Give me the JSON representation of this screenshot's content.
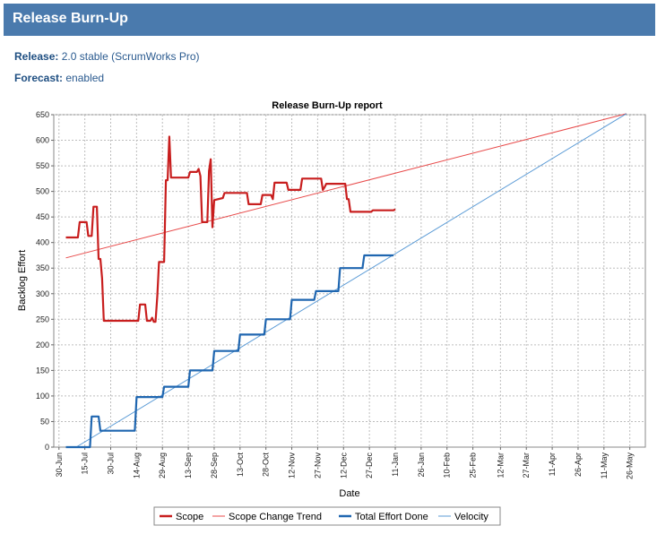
{
  "header": {
    "title": "Release Burn-Up"
  },
  "release": {
    "label": "Release:",
    "value": "2.0 stable (ScrumWorks Pro)"
  },
  "forecast": {
    "label": "Forecast:",
    "value": "enabled"
  },
  "colors": {
    "scope": "#c81e1e",
    "trend": "#e84a4a",
    "done": "#1f66b0",
    "velocity": "#5b9bd6",
    "header": "#4a7aad"
  },
  "chart_data": {
    "type": "line",
    "title": "Release Burn-Up report",
    "xlabel": "Date",
    "ylabel": "Backlog Effort",
    "ylim": [
      0,
      650
    ],
    "yticks": [
      0,
      50,
      100,
      150,
      200,
      250,
      300,
      350,
      400,
      450,
      500,
      550,
      600,
      650
    ],
    "xlim": [
      "2007-06-27",
      "2008-06-04"
    ],
    "xtick_labels": [
      {
        "date": "2007-06-30",
        "label": "30-Jun"
      },
      {
        "date": "2007-07-15",
        "label": "15-Jul"
      },
      {
        "date": "2007-07-30",
        "label": "30-Jul"
      },
      {
        "date": "2007-08-14",
        "label": "14-Aug"
      },
      {
        "date": "2007-08-29",
        "label": "29-Aug"
      },
      {
        "date": "2007-09-13",
        "label": "13-Sep"
      },
      {
        "date": "2007-09-28",
        "label": "28-Sep"
      },
      {
        "date": "2007-10-13",
        "label": "13-Oct"
      },
      {
        "date": "2007-10-28",
        "label": "28-Oct"
      },
      {
        "date": "2007-11-12",
        "label": "12-Nov"
      },
      {
        "date": "2007-11-27",
        "label": "27-Nov"
      },
      {
        "date": "2007-12-12",
        "label": "12-Dec"
      },
      {
        "date": "2007-12-27",
        "label": "27-Dec"
      },
      {
        "date": "2008-01-11",
        "label": "11-Jan"
      },
      {
        "date": "2008-01-26",
        "label": "26-Jan"
      },
      {
        "date": "2008-02-10",
        "label": "10-Feb"
      },
      {
        "date": "2008-02-25",
        "label": "25-Feb"
      },
      {
        "date": "2008-03-12",
        "label": "12-Mar"
      },
      {
        "date": "2008-03-27",
        "label": "27-Mar"
      },
      {
        "date": "2008-04-11",
        "label": "11-Apr"
      },
      {
        "date": "2008-04-26",
        "label": "26-Apr"
      },
      {
        "date": "2008-05-11",
        "label": "11-May"
      },
      {
        "date": "2008-05-26",
        "label": "26-May"
      }
    ],
    "legend_position": "bottom",
    "grid": true,
    "series": [
      {
        "name": "Scope",
        "color": "#c81e1e",
        "points": [
          [
            "2007-07-04",
            410
          ],
          [
            "2007-07-11",
            410
          ],
          [
            "2007-07-12",
            440
          ],
          [
            "2007-07-16",
            440
          ],
          [
            "2007-07-17",
            413
          ],
          [
            "2007-07-19",
            413
          ],
          [
            "2007-07-20",
            470
          ],
          [
            "2007-07-22",
            470
          ],
          [
            "2007-07-23",
            368
          ],
          [
            "2007-07-24",
            368
          ],
          [
            "2007-07-25",
            330
          ],
          [
            "2007-07-26",
            247
          ],
          [
            "2007-08-15",
            247
          ],
          [
            "2007-08-16",
            279
          ],
          [
            "2007-08-19",
            279
          ],
          [
            "2007-08-20",
            247
          ],
          [
            "2007-08-22",
            247
          ],
          [
            "2007-08-23",
            253
          ],
          [
            "2007-08-24",
            245
          ],
          [
            "2007-08-25",
            245
          ],
          [
            "2007-08-26",
            295
          ],
          [
            "2007-08-27",
            362
          ],
          [
            "2007-08-30",
            362
          ],
          [
            "2007-08-31",
            522
          ],
          [
            "2007-09-01",
            522
          ],
          [
            "2007-09-02",
            607
          ],
          [
            "2007-09-03",
            527
          ],
          [
            "2007-09-13",
            527
          ],
          [
            "2007-09-14",
            538
          ],
          [
            "2007-09-18",
            538
          ],
          [
            "2007-09-19",
            544
          ],
          [
            "2007-09-20",
            530
          ],
          [
            "2007-09-21",
            440
          ],
          [
            "2007-09-24",
            440
          ],
          [
            "2007-09-25",
            540
          ],
          [
            "2007-09-26",
            563
          ],
          [
            "2007-09-27",
            430
          ],
          [
            "2007-09-28",
            483
          ],
          [
            "2007-10-03",
            487
          ],
          [
            "2007-10-04",
            497
          ],
          [
            "2007-10-17",
            497
          ],
          [
            "2007-10-18",
            475
          ],
          [
            "2007-10-25",
            475
          ],
          [
            "2007-10-26",
            493
          ],
          [
            "2007-10-31",
            493
          ],
          [
            "2007-11-01",
            485
          ],
          [
            "2007-11-02",
            517
          ],
          [
            "2007-11-09",
            517
          ],
          [
            "2007-11-10",
            503
          ],
          [
            "2007-11-17",
            503
          ],
          [
            "2007-11-18",
            525
          ],
          [
            "2007-11-29",
            525
          ],
          [
            "2007-11-30",
            503
          ],
          [
            "2007-12-01",
            508
          ],
          [
            "2007-12-02",
            515
          ],
          [
            "2007-12-13",
            515
          ],
          [
            "2007-12-14",
            485
          ],
          [
            "2007-12-15",
            485
          ],
          [
            "2007-12-16",
            460
          ],
          [
            "2007-12-28",
            460
          ],
          [
            "2007-12-29",
            463
          ],
          [
            "2008-01-10",
            463
          ],
          [
            "2008-01-11",
            465
          ]
        ]
      },
      {
        "name": "Scope Change Trend",
        "color": "#e84a4a",
        "points": [
          [
            "2007-07-04",
            370
          ],
          [
            "2008-05-24",
            652
          ]
        ]
      },
      {
        "name": "Total Effort Done",
        "color": "#1f66b0",
        "points": [
          [
            "2007-07-04",
            0
          ],
          [
            "2007-07-18",
            0
          ],
          [
            "2007-07-19",
            60
          ],
          [
            "2007-07-23",
            60
          ],
          [
            "2007-07-24",
            32
          ],
          [
            "2007-08-13",
            32
          ],
          [
            "2007-08-14",
            98
          ],
          [
            "2007-08-29",
            98
          ],
          [
            "2007-08-30",
            118
          ],
          [
            "2007-09-13",
            118
          ],
          [
            "2007-09-14",
            150
          ],
          [
            "2007-09-27",
            150
          ],
          [
            "2007-09-28",
            188
          ],
          [
            "2007-10-12",
            188
          ],
          [
            "2007-10-13",
            220
          ],
          [
            "2007-10-27",
            220
          ],
          [
            "2007-10-28",
            250
          ],
          [
            "2007-11-11",
            250
          ],
          [
            "2007-11-12",
            288
          ],
          [
            "2007-11-25",
            288
          ],
          [
            "2007-11-26",
            305
          ],
          [
            "2007-12-09",
            305
          ],
          [
            "2007-12-10",
            350
          ],
          [
            "2007-12-23",
            350
          ],
          [
            "2007-12-24",
            375
          ],
          [
            "2008-01-10",
            375
          ]
        ]
      },
      {
        "name": "Velocity",
        "color": "#5b9bd6",
        "points": [
          [
            "2007-07-10",
            0
          ],
          [
            "2008-05-24",
            652
          ]
        ]
      }
    ]
  }
}
